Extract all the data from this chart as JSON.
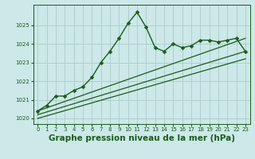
{
  "background_color": "#cce8e8",
  "grid_color": "#aacccc",
  "line_color": "#1a5c1a",
  "marker_color": "#1a5c1a",
  "xlabel": "Graphe pression niveau de la mer (hPa)",
  "xlabel_fontsize": 7.5,
  "xlim": [
    -0.5,
    23.5
  ],
  "ylim": [
    1019.7,
    1026.1
  ],
  "yticks": [
    1020,
    1021,
    1022,
    1023,
    1024,
    1025
  ],
  "xticks": [
    0,
    1,
    2,
    3,
    4,
    5,
    6,
    7,
    8,
    9,
    10,
    11,
    12,
    13,
    14,
    15,
    16,
    17,
    18,
    19,
    20,
    21,
    22,
    23
  ],
  "series": [
    {
      "x": [
        0,
        1,
        2,
        3,
        4,
        5,
        6,
        7,
        8,
        9,
        10,
        11,
        12,
        13,
        14,
        15,
        16,
        17,
        18,
        19,
        20,
        21,
        22,
        23
      ],
      "y": [
        1020.4,
        1020.7,
        1021.2,
        1021.2,
        1021.5,
        1021.7,
        1022.2,
        1023.0,
        1023.6,
        1024.3,
        1025.1,
        1025.7,
        1024.9,
        1023.8,
        1023.6,
        1024.0,
        1023.8,
        1023.9,
        1024.2,
        1024.2,
        1024.1,
        1024.2,
        1024.3,
        1023.6
      ],
      "marker": "D",
      "markersize": 2.5,
      "linewidth": 1.0
    },
    {
      "x": [
        0,
        23
      ],
      "y": [
        1020.4,
        1024.3
      ],
      "marker": null,
      "markersize": 0,
      "linewidth": 0.9
    },
    {
      "x": [
        0,
        23
      ],
      "y": [
        1020.2,
        1023.6
      ],
      "marker": null,
      "markersize": 0,
      "linewidth": 0.9
    },
    {
      "x": [
        0,
        23
      ],
      "y": [
        1020.0,
        1023.2
      ],
      "marker": null,
      "markersize": 0,
      "linewidth": 0.9
    }
  ]
}
